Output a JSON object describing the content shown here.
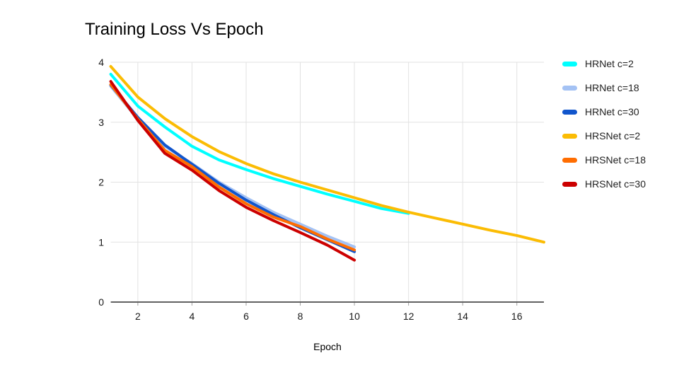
{
  "chart_data": {
    "type": "line",
    "title": "Training Loss Vs Epoch",
    "xlabel": "Epoch",
    "ylabel": "",
    "xlim": [
      1,
      17
    ],
    "ylim": [
      0,
      4
    ],
    "x_ticks": [
      2,
      4,
      6,
      8,
      10,
      12,
      14,
      16
    ],
    "y_ticks": [
      0,
      1,
      2,
      3,
      4
    ],
    "grid": true,
    "legend_position": "right",
    "colors": {
      "grid": "#e2e2e2",
      "axis": "#616161",
      "tick": "#9e9e9e",
      "tick_label": "#1a1a1a"
    },
    "series": [
      {
        "name": "HRNet c=2",
        "color": "#00ffff",
        "x": [
          1,
          2,
          3,
          4,
          5,
          6,
          7,
          8,
          9,
          10,
          11,
          12
        ],
        "values": [
          3.8,
          3.27,
          2.92,
          2.6,
          2.37,
          2.21,
          2.06,
          1.93,
          1.8,
          1.68,
          1.56,
          1.48
        ]
      },
      {
        "name": "HRNet c=18",
        "color": "#a4c2f4",
        "x": [
          1,
          2,
          3,
          4,
          5,
          6,
          7,
          8,
          9,
          10
        ],
        "values": [
          3.6,
          3.05,
          2.6,
          2.31,
          2.0,
          1.74,
          1.5,
          1.3,
          1.1,
          0.92
        ]
      },
      {
        "name": "HRNet c=30",
        "color": "#1155cc",
        "x": [
          1,
          2,
          3,
          4,
          5,
          6,
          7,
          8,
          9,
          10
        ],
        "values": [
          3.62,
          3.08,
          2.62,
          2.3,
          1.98,
          1.7,
          1.46,
          1.24,
          1.04,
          0.84
        ]
      },
      {
        "name": "HRSNet c=2",
        "color": "#fbbc04",
        "x": [
          1,
          2,
          3,
          4,
          5,
          6,
          7,
          8,
          9,
          10,
          11,
          12,
          13,
          14,
          15,
          16,
          17
        ],
        "values": [
          3.93,
          3.42,
          3.06,
          2.76,
          2.51,
          2.31,
          2.14,
          2.0,
          1.87,
          1.74,
          1.61,
          1.5,
          1.4,
          1.3,
          1.2,
          1.11,
          1.0
        ]
      },
      {
        "name": "HRSNet c=18",
        "color": "#ff6d01",
        "x": [
          1,
          2,
          3,
          4,
          5,
          6,
          7,
          8,
          9,
          10
        ],
        "values": [
          3.63,
          3.05,
          2.53,
          2.26,
          1.92,
          1.64,
          1.42,
          1.26,
          1.05,
          0.87
        ]
      },
      {
        "name": "HRSNet c=30",
        "color": "#cc0000",
        "x": [
          1,
          2,
          3,
          4,
          5,
          6,
          7,
          8,
          9,
          10
        ],
        "values": [
          3.68,
          3.03,
          2.48,
          2.2,
          1.86,
          1.58,
          1.36,
          1.16,
          0.95,
          0.7
        ]
      }
    ]
  }
}
